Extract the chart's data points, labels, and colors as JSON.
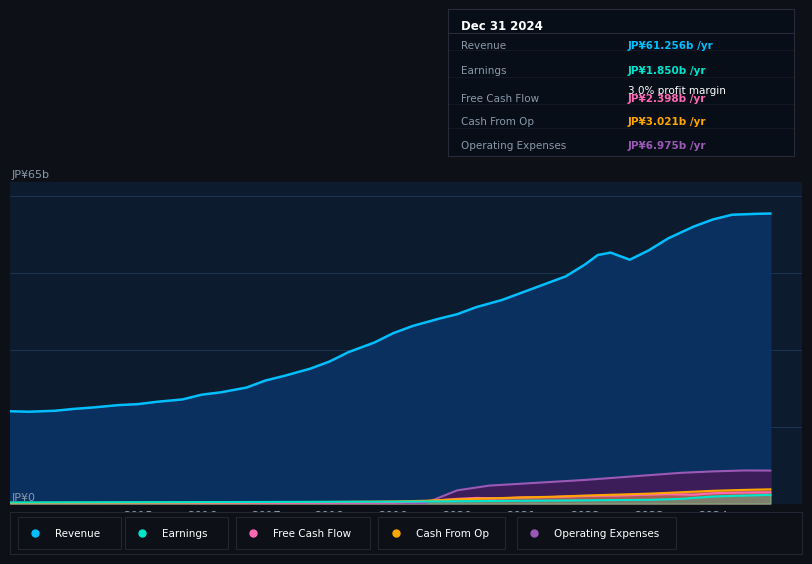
{
  "background_color": "#0d1117",
  "plot_bg_color": "#0d1b2e",
  "ylabel_top": "JP¥65b",
  "ylabel_bottom": "JP¥0",
  "x_ticks": [
    2015,
    2016,
    2017,
    2018,
    2019,
    2020,
    2021,
    2022,
    2023,
    2024
  ],
  "series": {
    "Revenue": {
      "color": "#00bfff",
      "fill_color": "#0a3060",
      "values_x": [
        2013.0,
        2013.3,
        2013.7,
        2014.0,
        2014.3,
        2014.7,
        2015.0,
        2015.3,
        2015.7,
        2016.0,
        2016.3,
        2016.7,
        2017.0,
        2017.3,
        2017.7,
        2018.0,
        2018.3,
        2018.7,
        2019.0,
        2019.3,
        2019.7,
        2020.0,
        2020.3,
        2020.7,
        2021.0,
        2021.3,
        2021.7,
        2022.0,
        2022.2,
        2022.4,
        2022.7,
        2023.0,
        2023.3,
        2023.7,
        2024.0,
        2024.3,
        2024.7,
        2024.9
      ],
      "values_y": [
        19.5,
        19.4,
        19.6,
        20.0,
        20.3,
        20.8,
        21.0,
        21.5,
        22.0,
        23.0,
        23.5,
        24.5,
        26.0,
        27.0,
        28.5,
        30.0,
        32.0,
        34.0,
        36.0,
        37.5,
        39.0,
        40.0,
        41.5,
        43.0,
        44.5,
        46.0,
        48.0,
        50.5,
        52.5,
        53.0,
        51.5,
        53.5,
        56.0,
        58.5,
        60.0,
        61.0,
        61.2,
        61.256
      ]
    },
    "Earnings": {
      "color": "#00e5cc",
      "values_x": [
        2013.0,
        2014.0,
        2015.0,
        2016.0,
        2017.0,
        2018.0,
        2019.0,
        2019.5,
        2020.0,
        2020.5,
        2021.0,
        2021.5,
        2022.0,
        2022.5,
        2023.0,
        2023.5,
        2024.0,
        2024.5,
        2024.9
      ],
      "values_y": [
        0.25,
        0.28,
        0.3,
        0.32,
        0.35,
        0.38,
        0.4,
        0.45,
        0.5,
        0.55,
        0.6,
        0.65,
        0.7,
        0.75,
        0.8,
        1.0,
        1.5,
        1.7,
        1.85
      ]
    },
    "FreeCashFlow": {
      "color": "#ff69b4",
      "values_x": [
        2013.0,
        2014.0,
        2015.0,
        2016.0,
        2017.0,
        2018.0,
        2019.0,
        2019.5,
        2020.0,
        2020.3,
        2020.7,
        2021.0,
        2021.5,
        2022.0,
        2022.5,
        2023.0,
        2023.3,
        2023.7,
        2024.0,
        2024.5,
        2024.9
      ],
      "values_y": [
        0.1,
        0.12,
        0.15,
        0.15,
        0.18,
        0.2,
        0.25,
        0.5,
        1.0,
        1.2,
        1.1,
        1.3,
        1.4,
        1.6,
        1.7,
        1.9,
        2.0,
        1.9,
        2.2,
        2.35,
        2.398
      ]
    },
    "CashFromOp": {
      "color": "#ffa500",
      "values_x": [
        2013.0,
        2014.0,
        2015.0,
        2016.0,
        2017.0,
        2018.0,
        2019.0,
        2019.5,
        2020.0,
        2020.5,
        2021.0,
        2021.5,
        2022.0,
        2022.5,
        2023.0,
        2023.5,
        2024.0,
        2024.5,
        2024.9
      ],
      "values_y": [
        0.15,
        0.18,
        0.2,
        0.25,
        0.3,
        0.35,
        0.45,
        0.6,
        0.9,
        1.1,
        1.3,
        1.45,
        1.7,
        1.9,
        2.1,
        2.4,
        2.7,
        2.9,
        3.021
      ]
    },
    "OperatingExpenses": {
      "color": "#9b59b6",
      "fill_color": "#3d1c5a",
      "values_x": [
        2013.0,
        2014.0,
        2015.0,
        2016.0,
        2017.0,
        2018.0,
        2019.0,
        2019.5,
        2020.0,
        2020.5,
        2021.0,
        2021.5,
        2022.0,
        2022.5,
        2023.0,
        2023.5,
        2024.0,
        2024.5,
        2024.9
      ],
      "values_y": [
        0.0,
        0.0,
        0.0,
        0.0,
        0.0,
        0.0,
        0.0,
        0.1,
        2.8,
        3.8,
        4.2,
        4.6,
        5.0,
        5.5,
        6.0,
        6.5,
        6.8,
        7.0,
        6.975
      ]
    }
  },
  "info_box": {
    "title": "Dec 31 2024",
    "rows": [
      {
        "label": "Revenue",
        "value": "JP¥61.256b",
        "value_color": "#00bfff",
        "suffix": " /yr",
        "extra": null
      },
      {
        "label": "Earnings",
        "value": "JP¥1.850b",
        "value_color": "#00e5cc",
        "suffix": " /yr",
        "extra": "3.0% profit margin"
      },
      {
        "label": "Free Cash Flow",
        "value": "JP¥2.398b",
        "value_color": "#ff69b4",
        "suffix": " /yr",
        "extra": null
      },
      {
        "label": "Cash From Op",
        "value": "JP¥3.021b",
        "value_color": "#ffa500",
        "suffix": " /yr",
        "extra": null
      },
      {
        "label": "Operating Expenses",
        "value": "JP¥6.975b",
        "value_color": "#9b59b6",
        "suffix": " /yr",
        "extra": null
      }
    ]
  },
  "legend": [
    {
      "label": "Revenue",
      "color": "#00bfff"
    },
    {
      "label": "Earnings",
      "color": "#00e5cc"
    },
    {
      "label": "Free Cash Flow",
      "color": "#ff69b4"
    },
    {
      "label": "Cash From Op",
      "color": "#ffa500"
    },
    {
      "label": "Operating Expenses",
      "color": "#9b59b6"
    }
  ],
  "ylim": [
    0,
    68
  ],
  "xlim": [
    2013.0,
    2025.4
  ],
  "grid_color": "#1e3a5a",
  "axis_label_color": "#8899aa",
  "tick_label_color": "#8899aa",
  "info_box_bg": "#080e18",
  "info_box_border": "#2a2a3a"
}
